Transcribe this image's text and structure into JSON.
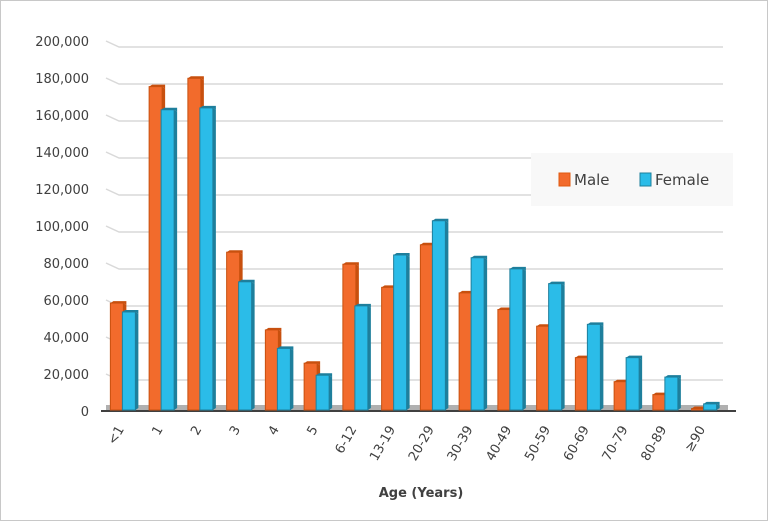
{
  "chart_data": {
    "type": "bar",
    "title": "",
    "xlabel": "Age (Years)",
    "ylabel": "",
    "ylim": [
      0,
      200000
    ],
    "ytick_step": 20000,
    "yticks": [
      "0",
      "20,000",
      "40,000",
      "60,000",
      "80,000",
      "100,000",
      "120,000",
      "140,000",
      "160,000",
      "180,000",
      "200,000"
    ],
    "grid": true,
    "legend": "right",
    "categories": [
      "<1",
      "1",
      "2",
      "3",
      "4",
      "5",
      "6-12",
      "13-19",
      "20-29",
      "30-39",
      "40-49",
      "50-59",
      "60-69",
      "70-79",
      "80-89",
      "≥90"
    ],
    "series": [
      {
        "name": "Male",
        "color": "#f26b2c",
        "values": [
          60500,
          177500,
          182000,
          88000,
          46000,
          28000,
          81500,
          69000,
          92000,
          66000,
          57000,
          48000,
          31000,
          18000,
          11000,
          3500
        ]
      },
      {
        "name": "Female",
        "color": "#2bbce8",
        "values": [
          55700,
          165000,
          166000,
          72000,
          36000,
          21500,
          59000,
          86500,
          105000,
          85000,
          79000,
          71000,
          49000,
          31000,
          20500,
          6000
        ]
      }
    ]
  }
}
